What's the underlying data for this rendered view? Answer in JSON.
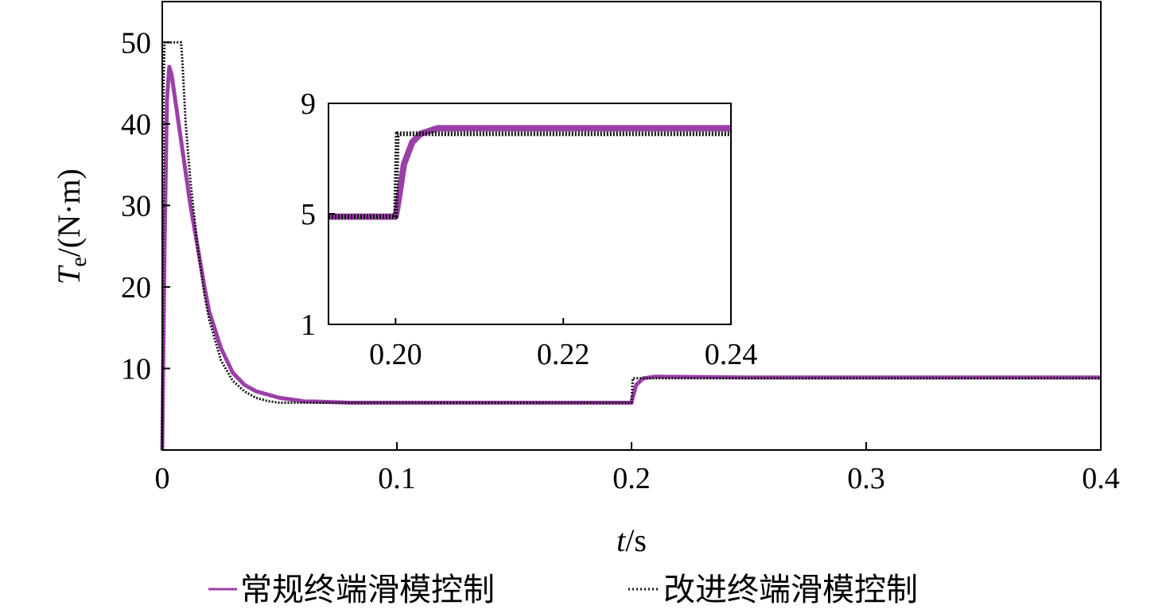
{
  "chart_data": [
    {
      "type": "line",
      "xlabel": {
        "var": "t",
        "unit": "/s"
      },
      "ylabel": {
        "var": "T",
        "sub": "e",
        "unit": "/(N·m)"
      },
      "xlim": [
        0,
        0.4
      ],
      "ylim": [
        0,
        55
      ],
      "xticks": [
        0,
        0.1,
        0.2,
        0.3,
        0.4
      ],
      "xtick_labels": [
        "0",
        "0.1",
        "0.2",
        "0.3",
        "0.4"
      ],
      "yticks": [
        10,
        20,
        30,
        40,
        50
      ],
      "ytick_labels": [
        "10",
        "20",
        "30",
        "40",
        "50"
      ],
      "grid": false,
      "legend_position": "bottom",
      "series": [
        {
          "name": "常规终端滑模控制",
          "color": "#9B3FA8",
          "style": "solid",
          "x": [
            0,
            0.001,
            0.002,
            0.003,
            0.004,
            0.006,
            0.008,
            0.01,
            0.012,
            0.015,
            0.018,
            0.02,
            0.025,
            0.03,
            0.035,
            0.04,
            0.05,
            0.06,
            0.07,
            0.08,
            0.1,
            0.15,
            0.2,
            0.2001,
            0.202,
            0.205,
            0.21,
            0.25,
            0.3,
            0.35,
            0.4
          ],
          "y": [
            0,
            25,
            43,
            47,
            46,
            42,
            38,
            34,
            30,
            25,
            20,
            17,
            12.5,
            9.5,
            8,
            7.2,
            6.4,
            6.0,
            5.9,
            5.8,
            5.8,
            5.8,
            5.8,
            6.0,
            8.0,
            8.8,
            9.0,
            8.9,
            8.9,
            8.9,
            8.9
          ]
        },
        {
          "name": "改进终端滑模控制",
          "color": "#111111",
          "style": "dotted",
          "x": [
            0,
            0.0005,
            0.001,
            0.008,
            0.0085,
            0.01,
            0.012,
            0.015,
            0.018,
            0.02,
            0.025,
            0.03,
            0.035,
            0.04,
            0.045,
            0.05,
            0.055,
            0.06,
            0.08,
            0.1,
            0.15,
            0.2,
            0.2005,
            0.21,
            0.25,
            0.3,
            0.35,
            0.4
          ],
          "y": [
            0,
            45,
            50,
            50,
            48,
            40,
            33,
            25,
            19,
            16,
            11,
            8.5,
            7.2,
            6.4,
            6.0,
            5.8,
            5.8,
            5.8,
            5.8,
            5.8,
            5.8,
            5.8,
            8.8,
            8.8,
            8.8,
            8.8,
            8.8,
            8.8
          ]
        }
      ]
    },
    {
      "type": "line",
      "role": "inset",
      "xlim": [
        0.192,
        0.24
      ],
      "ylim": [
        1,
        9
      ],
      "xticks": [
        0.2,
        0.22,
        0.24
      ],
      "xtick_labels": [
        "0.20",
        "0.22",
        "0.24"
      ],
      "yticks": [
        1,
        5,
        9
      ],
      "ytick_labels": [
        "1",
        "5",
        "9"
      ],
      "grid": false,
      "series": [
        {
          "color": "#9B3FA8",
          "style": "solid",
          "x": [
            0.192,
            0.2,
            0.2002,
            0.201,
            0.202,
            0.203,
            0.205,
            0.21,
            0.22,
            0.23,
            0.24
          ],
          "y": [
            4.9,
            4.9,
            5.2,
            6.8,
            7.6,
            7.9,
            8.1,
            8.1,
            8.1,
            8.1,
            8.1
          ]
        },
        {
          "color": "#111111",
          "style": "dotted",
          "x": [
            0.192,
            0.2,
            0.2002,
            0.21,
            0.22,
            0.23,
            0.24
          ],
          "y": [
            4.9,
            4.9,
            7.9,
            7.9,
            7.9,
            7.9,
            7.9
          ]
        }
      ]
    }
  ]
}
